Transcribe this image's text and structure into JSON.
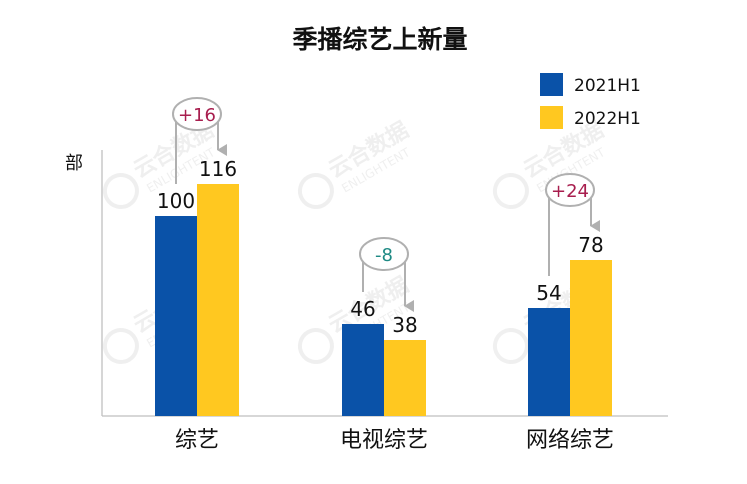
{
  "chart_data": {
    "type": "bar",
    "title": "季播综艺上新量",
    "ylabel": "部",
    "xlabel": "",
    "categories": [
      "综艺",
      "电视综艺",
      "网络综艺"
    ],
    "series": [
      {
        "name": "2021H1",
        "values": [
          100,
          46,
          54
        ],
        "color": "#0a52a8"
      },
      {
        "name": "2022H1",
        "values": [
          116,
          38,
          78
        ],
        "color": "#ffc820"
      }
    ],
    "changes": [
      {
        "text": "+16",
        "color": "#a81e4e"
      },
      {
        "text": "-8",
        "color": "#1e8a84"
      },
      {
        "text": "+24",
        "color": "#a81e4e"
      }
    ],
    "ylim": [
      0,
      140
    ],
    "grid": false,
    "legend_position": "top-right",
    "watermark": {
      "logo_text": "云合数据",
      "sub_text": "ENLIGHTENT"
    }
  }
}
